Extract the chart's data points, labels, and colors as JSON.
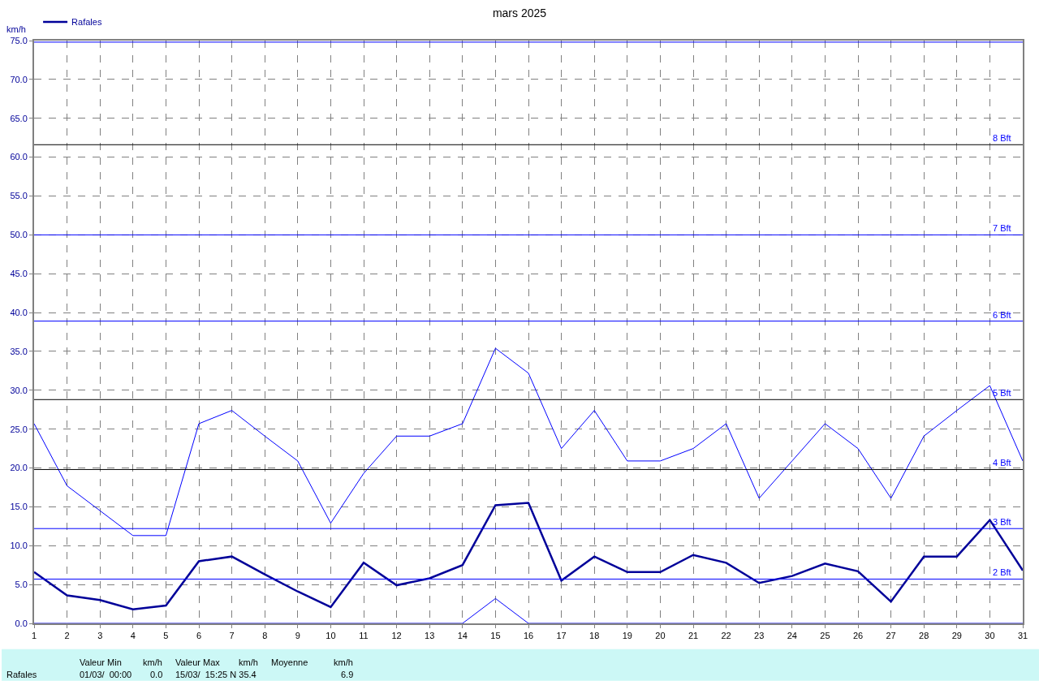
{
  "chart_data": {
    "type": "line",
    "title": "mars 2025",
    "ylabel": "km/h",
    "x": [
      1,
      2,
      3,
      4,
      5,
      6,
      7,
      8,
      9,
      10,
      11,
      12,
      13,
      14,
      15,
      16,
      17,
      18,
      19,
      20,
      21,
      22,
      23,
      24,
      25,
      26,
      27,
      28,
      29,
      30,
      31
    ],
    "xlim": [
      1,
      31
    ],
    "xticks": [
      1,
      2,
      3,
      4,
      5,
      6,
      7,
      8,
      9,
      10,
      11,
      12,
      13,
      14,
      15,
      16,
      17,
      18,
      19,
      20,
      21,
      22,
      23,
      24,
      25,
      26,
      27,
      28,
      29,
      30,
      31
    ],
    "ylim": [
      0,
      75
    ],
    "yticks": [
      {
        "value": 0,
        "label": "0.0"
      },
      {
        "value": 5,
        "label": "5.0"
      },
      {
        "value": 10,
        "label": "10.0"
      },
      {
        "value": 15,
        "label": "15.0"
      },
      {
        "value": 20,
        "label": "20.0"
      },
      {
        "value": 25,
        "label": "25.0"
      },
      {
        "value": 30,
        "label": "30.0"
      },
      {
        "value": 35,
        "label": "35.0"
      },
      {
        "value": 40,
        "label": "40.0"
      },
      {
        "value": 45,
        "label": "45.0"
      },
      {
        "value": 50,
        "label": "50.0"
      },
      {
        "value": 55,
        "label": "55.0"
      },
      {
        "value": 60,
        "label": "60.0"
      },
      {
        "value": 65,
        "label": "65.0"
      },
      {
        "value": 70,
        "label": "70.0"
      },
      {
        "value": 75,
        "label": "75.0"
      }
    ],
    "grid": true,
    "legend": "top left",
    "marker": "none",
    "series": [
      {
        "color": "#0000ff",
        "values": [
          25.7,
          17.7,
          14.5,
          11.3,
          11.3,
          25.7,
          27.4,
          24.1,
          20.9,
          12.9,
          19.3,
          24.1,
          24.1,
          25.7,
          35.4,
          32.2,
          22.5,
          27.4,
          20.9,
          20.9,
          22.5,
          25.7,
          16.1,
          20.9,
          25.7,
          22.5,
          16.1,
          24.1,
          27.4,
          30.6,
          20.9
        ]
      },
      {
        "name": "Rafales",
        "color": "#000099",
        "values": [
          6.6,
          3.6,
          3.0,
          1.8,
          2.3,
          8.0,
          8.6,
          6.3,
          4.1,
          2.1,
          7.8,
          4.9,
          5.8,
          7.5,
          15.2,
          15.5,
          5.5,
          8.6,
          6.6,
          6.6,
          8.8,
          7.8,
          5.2,
          6.1,
          7.7,
          6.7,
          2.8,
          8.6,
          8.6,
          13.3,
          6.8
        ]
      },
      {
        "color": "#0000ff",
        "values": [
          0,
          0,
          0,
          0,
          0,
          0,
          0,
          0,
          0,
          0,
          0,
          0,
          0,
          0,
          3.2,
          0,
          0,
          0,
          0,
          0,
          0,
          0,
          0,
          0,
          0,
          0,
          0,
          0,
          0,
          0,
          0
        ]
      }
    ],
    "ref_lines": [
      {
        "axis": "y",
        "value": 74.8,
        "label": null,
        "color": "#0000ff"
      },
      {
        "axis": "y",
        "value": 61.6,
        "label": "8 Bft",
        "color": "#000000"
      },
      {
        "axis": "y",
        "value": 50,
        "label": "7 Bft",
        "color": "#0000ff"
      },
      {
        "axis": "y",
        "value": 38.9,
        "label": "6 Bft",
        "color": "#0000ff"
      },
      {
        "axis": "y",
        "value": 28.8,
        "label": "5 Bft",
        "color": "#000000"
      },
      {
        "axis": "y",
        "value": 19.8,
        "label": "4 Bft",
        "color": "#000000"
      },
      {
        "axis": "y",
        "value": 12.2,
        "label": "3 Bft",
        "color": "#0000ff"
      },
      {
        "axis": "y",
        "value": 5.7,
        "label": "2 Bft",
        "color": "#0000ff"
      }
    ],
    "annotations": [
      "Rafales",
      "Valeur Min",
      "km/h",
      "01/03/  00:00",
      "0.0",
      "Valeur Max",
      "km/h",
      "15/03/  15:25 N 35.4",
      "Moyenne",
      "km/h",
      "6.9"
    ]
  }
}
